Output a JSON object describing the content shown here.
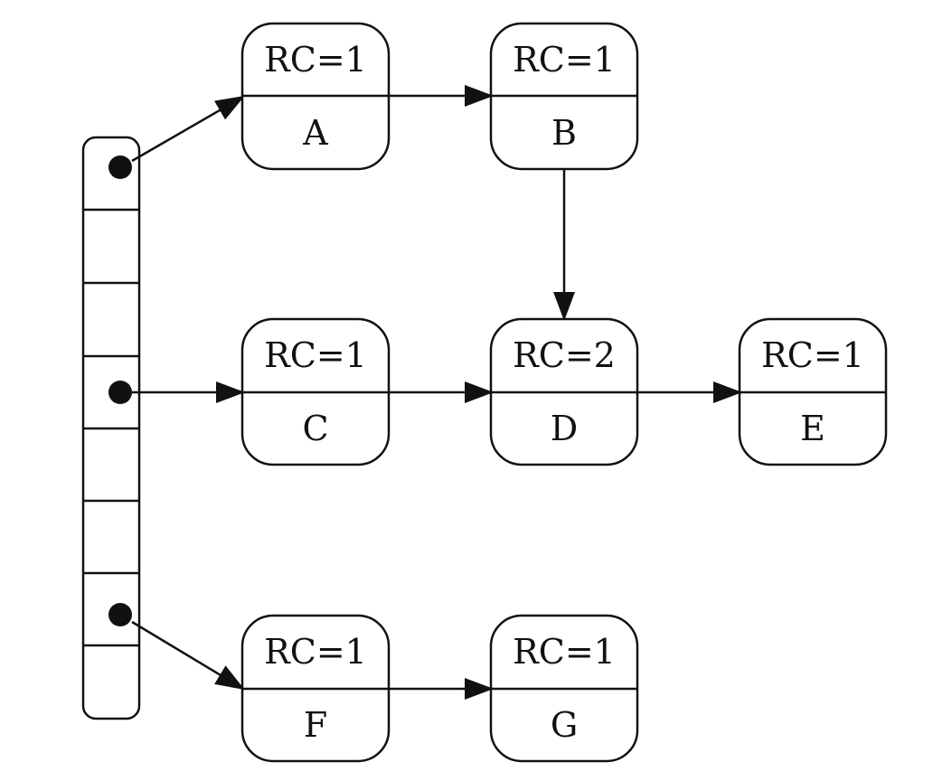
{
  "diagram": {
    "nodes": [
      {
        "id": "A",
        "rc": "RC=1",
        "name": "A"
      },
      {
        "id": "B",
        "rc": "RC=1",
        "name": "B"
      },
      {
        "id": "C",
        "rc": "RC=1",
        "name": "C"
      },
      {
        "id": "D",
        "rc": "RC=2",
        "name": "D"
      },
      {
        "id": "E",
        "rc": "RC=1",
        "name": "E"
      },
      {
        "id": "F",
        "rc": "RC=1",
        "name": "F"
      },
      {
        "id": "G",
        "rc": "RC=1",
        "name": "G"
      }
    ],
    "edges": [
      {
        "from": "array-slot-0",
        "to": "A"
      },
      {
        "from": "A",
        "to": "B"
      },
      {
        "from": "B",
        "to": "D"
      },
      {
        "from": "array-slot-3",
        "to": "C"
      },
      {
        "from": "C",
        "to": "D"
      },
      {
        "from": "D",
        "to": "E"
      },
      {
        "from": "array-slot-6",
        "to": "F"
      },
      {
        "from": "F",
        "to": "G"
      }
    ],
    "array": {
      "slots": 8,
      "filled_slots": [
        0,
        3,
        6
      ]
    },
    "colors": {
      "stroke": "#111111",
      "fill": "#ffffff",
      "text": "#111111"
    }
  }
}
